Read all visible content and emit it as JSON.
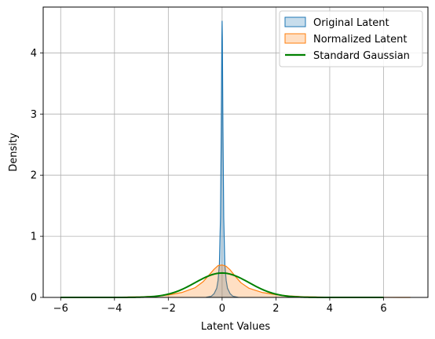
{
  "chart_data": {
    "type": "area",
    "xlabel": "Latent Values",
    "ylabel": "Density",
    "xlim": [
      -6.65,
      7.65
    ],
    "ylim": [
      0,
      4.75
    ],
    "xticks": [
      -6,
      -4,
      -2,
      0,
      2,
      4,
      6
    ],
    "yticks": [
      0,
      1,
      2,
      3,
      4
    ],
    "xtick_labels": [
      "−6",
      "−4",
      "−2",
      "0",
      "2",
      "4",
      "6"
    ],
    "ytick_labels": [
      "0",
      "1",
      "2",
      "3",
      "4"
    ],
    "grid": true,
    "legend_position": "top-right",
    "series": [
      {
        "name": "Original Latent",
        "kind": "kde_filled",
        "color": "#1f77b4",
        "fill_opacity": 0.25,
        "x": [
          -0.6,
          -0.4,
          -0.3,
          -0.2,
          -0.15,
          -0.1,
          -0.06,
          -0.03,
          -0.01,
          0.0,
          0.01,
          0.03,
          0.06,
          0.1,
          0.15,
          0.2,
          0.3,
          0.4,
          0.6
        ],
        "y": [
          0,
          0.02,
          0.06,
          0.15,
          0.28,
          0.55,
          1.3,
          2.8,
          4.2,
          4.52,
          4.2,
          2.8,
          1.3,
          0.55,
          0.28,
          0.15,
          0.06,
          0.02,
          0
        ]
      },
      {
        "name": "Normalized Latent",
        "kind": "kde_filled",
        "color": "#ff7f0e",
        "fill_opacity": 0.25,
        "x": [
          -6.0,
          -4.0,
          -3.0,
          -2.5,
          -2.0,
          -1.5,
          -1.0,
          -0.7,
          -0.5,
          -0.3,
          -0.15,
          0.0,
          0.15,
          0.3,
          0.5,
          0.7,
          1.0,
          1.5,
          2.0,
          2.5,
          3.0,
          4.0,
          5.0,
          6.0,
          7.0
        ],
        "y": [
          0,
          0.003,
          0.01,
          0.02,
          0.04,
          0.08,
          0.16,
          0.26,
          0.36,
          0.46,
          0.52,
          0.53,
          0.51,
          0.45,
          0.34,
          0.24,
          0.15,
          0.08,
          0.045,
          0.025,
          0.012,
          0.004,
          0.002,
          0.001,
          0
        ]
      },
      {
        "name": "Standard Gaussian",
        "kind": "line",
        "color": "#008000",
        "line_width": 2,
        "x_range": [
          -6,
          6
        ],
        "mean": 0,
        "std": 1
      }
    ]
  }
}
